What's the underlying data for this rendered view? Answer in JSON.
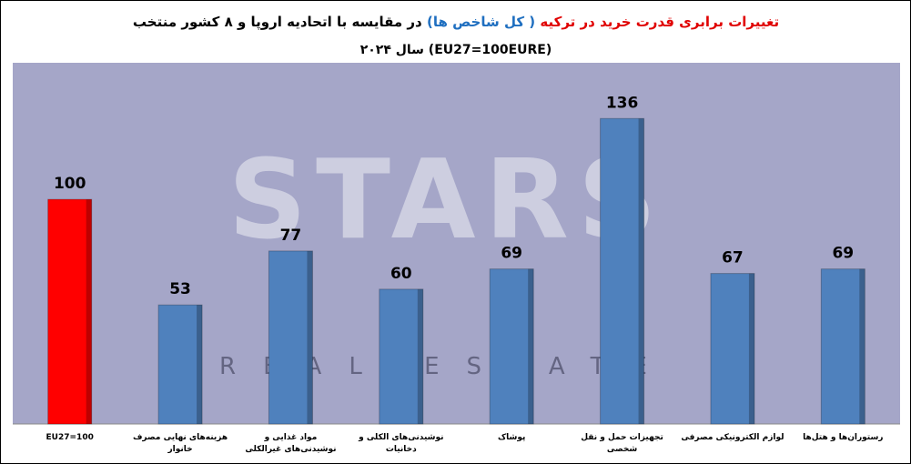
{
  "chart_data": {
    "type": "bar",
    "title": [
      {
        "text": "تغییرات برابری قدرت خرید در ترکیه",
        "color": "#e00000"
      },
      {
        "text": "( کل شاخص ها)",
        "color": "#1f6fc0"
      },
      {
        "text": "در مقایسه با اتحادیه اروپا و ۸ کشور منتخب",
        "color": "#000000"
      }
    ],
    "subtitle": "(EU27=100EURE) سال ۲۰۲۴",
    "watermark": [
      "STARS",
      "REAL ESTATE"
    ],
    "categories": [
      "EU27=100",
      "هزینه‌های نهایی مصرف خانوار",
      "مواد غذایی و نوشیدنی‌های غیرالکلی",
      "نوشیدنی‌های الکلی و دخانیات",
      "پوشاک",
      "تجهیزات حمل و نقل شخصی",
      "لوازم الکترونیکی مصرفی",
      "رستوران‌ها و هتل‌ها"
    ],
    "values": [
      100,
      53,
      77,
      60,
      69,
      136,
      67,
      69
    ],
    "colors": [
      "#ff0000",
      "#4f81bd",
      "#4f81bd",
      "#4f81bd",
      "#4f81bd",
      "#4f81bd",
      "#4f81bd",
      "#4f81bd"
    ],
    "ylim": [
      0,
      160
    ]
  }
}
